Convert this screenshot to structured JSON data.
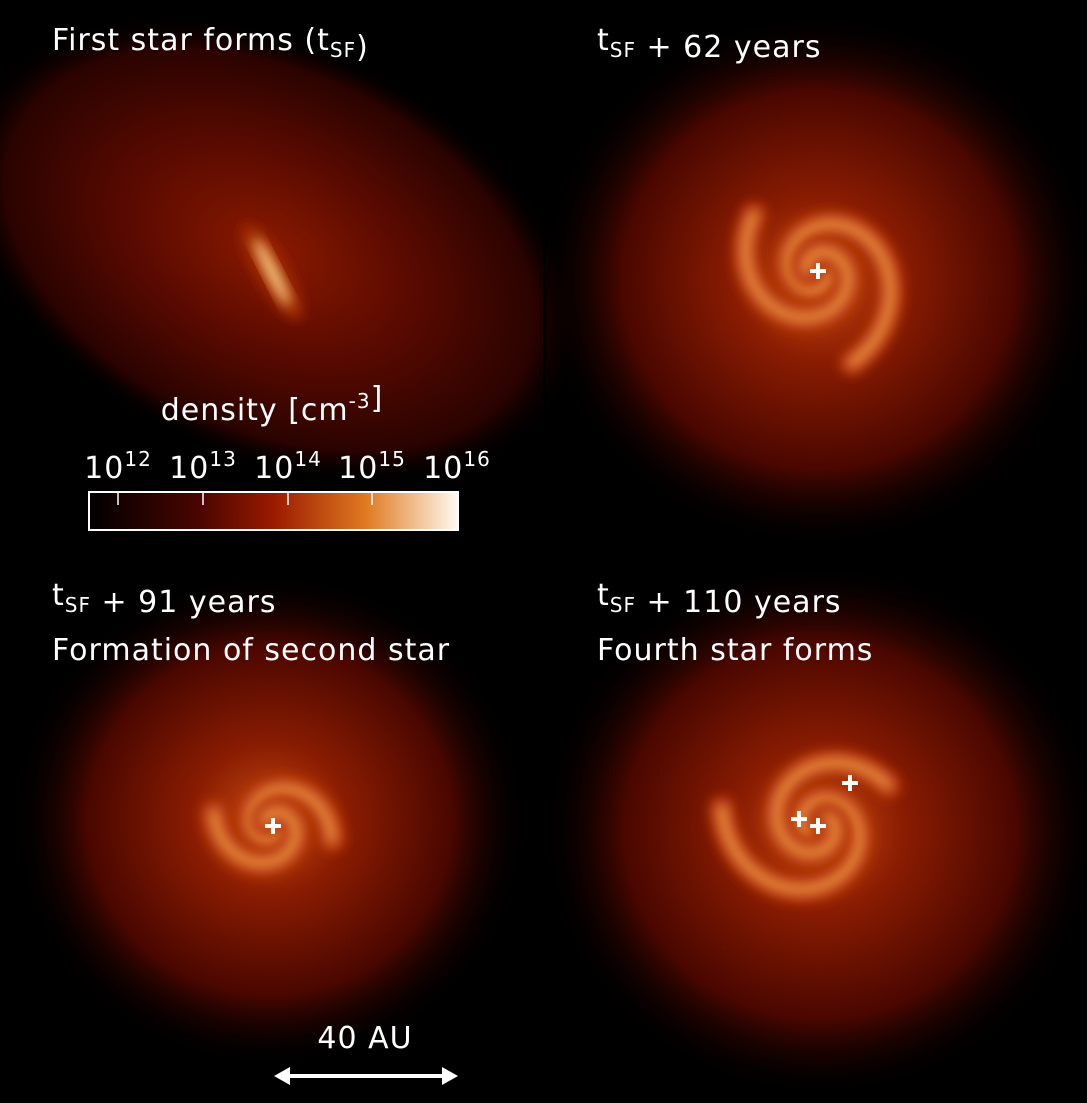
{
  "panels": [
    {
      "lines": [
        [
          "First star forms (t",
          {
            "sub": "SF"
          },
          ")"
        ]
      ]
    },
    {
      "lines": [
        [
          "t",
          {
            "sub": "SF"
          },
          " + 62 years"
        ]
      ]
    },
    {
      "lines": [
        [
          "t",
          {
            "sub": "SF"
          },
          " + 91 years"
        ],
        [
          "Formation of second star"
        ]
      ]
    },
    {
      "lines": [
        [
          "t",
          {
            "sub": "SF"
          },
          " + 110 years"
        ],
        [
          "Fourth star forms"
        ]
      ]
    }
  ],
  "colorbar": {
    "label": [
      "density [cm",
      {
        "sup": "-3"
      },
      "]"
    ],
    "ticks": [
      [
        "10",
        {
          "sup": "12"
        }
      ],
      [
        "10",
        {
          "sup": "13"
        }
      ],
      [
        "10",
        {
          "sup": "14"
        }
      ],
      [
        "10",
        {
          "sup": "15"
        }
      ],
      [
        "10",
        {
          "sup": "16"
        }
      ]
    ]
  },
  "scale_bar": {
    "label": "40 AU"
  }
}
